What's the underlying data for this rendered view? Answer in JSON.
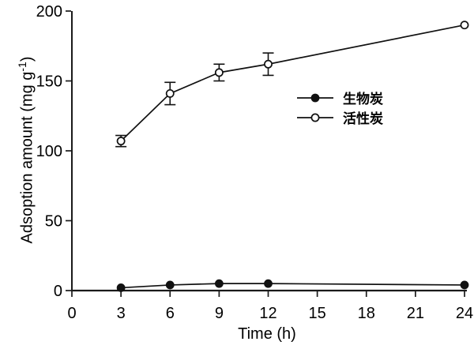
{
  "chart_data": {
    "type": "line",
    "title": "",
    "xlabel": "Time (h)",
    "ylabel": "Adsoption amount (mg g-1)",
    "ylabel_parts": {
      "main": "Adsoption amount (mg g",
      "sup": "-1",
      "end": ")"
    },
    "xlim": [
      0,
      24
    ],
    "ylim": [
      0,
      200
    ],
    "xticks": [
      0,
      3,
      6,
      9,
      12,
      15,
      18,
      21,
      24
    ],
    "yticks": [
      0,
      50,
      100,
      150,
      200
    ],
    "grid": false,
    "legend_position": "center-right",
    "x": [
      3,
      6,
      9,
      12,
      24
    ],
    "series": [
      {
        "name": "生物炭",
        "marker": "filled-circle",
        "color": "#111111",
        "values": [
          2,
          4,
          5,
          5,
          4
        ],
        "errors": [
          0,
          0,
          0,
          0,
          0
        ]
      },
      {
        "name": "活性炭",
        "marker": "open-circle",
        "color": "#111111",
        "values": [
          107,
          141,
          156,
          162,
          190
        ],
        "errors": [
          4,
          8,
          6,
          8,
          0
        ]
      }
    ]
  }
}
